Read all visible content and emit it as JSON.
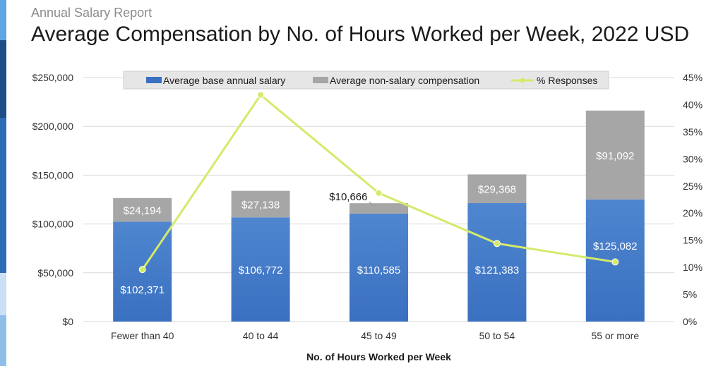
{
  "header": {
    "supertitle": "Annual Salary Report",
    "title": "Average Compensation by No. of Hours Worked per Week, 2022 USD"
  },
  "colors": {
    "strip": [
      "#5ea6e6",
      "#1f4e87",
      "#2e6cb8",
      "#c9e0f5",
      "#8fbfe8"
    ],
    "base": "#3a70c0",
    "base_light": "#4f86cf",
    "nonsalary": "#a6a6a6",
    "line": "#d4ea6b",
    "legend_bg": "#e6e6e6"
  },
  "chart_data": {
    "type": "bar",
    "stacked": true,
    "categories": [
      "Fewer than 40",
      "40 to 44",
      "45 to 49",
      "50 to 54",
      "55 or more"
    ],
    "series": [
      {
        "name": "Average base annual salary",
        "values": [
          102371,
          106772,
          110585,
          121383,
          125082
        ],
        "labels": [
          "$102,371",
          "$106,772",
          "$110,585",
          "$121,383",
          "$125,082"
        ]
      },
      {
        "name": "Average non-salary compensation",
        "values": [
          24194,
          27138,
          10666,
          29368,
          91092
        ],
        "labels": [
          "$24,194",
          "$27,138",
          "$10,666",
          "$29,368",
          "$91,092"
        ]
      }
    ],
    "line_series": {
      "name": "% Responses",
      "type": "line",
      "axis": "secondary",
      "values": [
        9.6,
        41.8,
        23.7,
        14.4,
        11.0
      ]
    },
    "xlabel": "No. of Hours Worked per Week",
    "ylim": [
      0,
      250000
    ],
    "y_ticks": [
      "$0",
      "$50,000",
      "$100,000",
      "$150,000",
      "$200,000",
      "$250,000"
    ],
    "y2lim": [
      0,
      45
    ],
    "y2_ticks": [
      "0%",
      "5%",
      "10%",
      "15%",
      "20%",
      "25%",
      "30%",
      "35%",
      "40%",
      "45%"
    ],
    "legend_position": "top",
    "grid": true
  }
}
